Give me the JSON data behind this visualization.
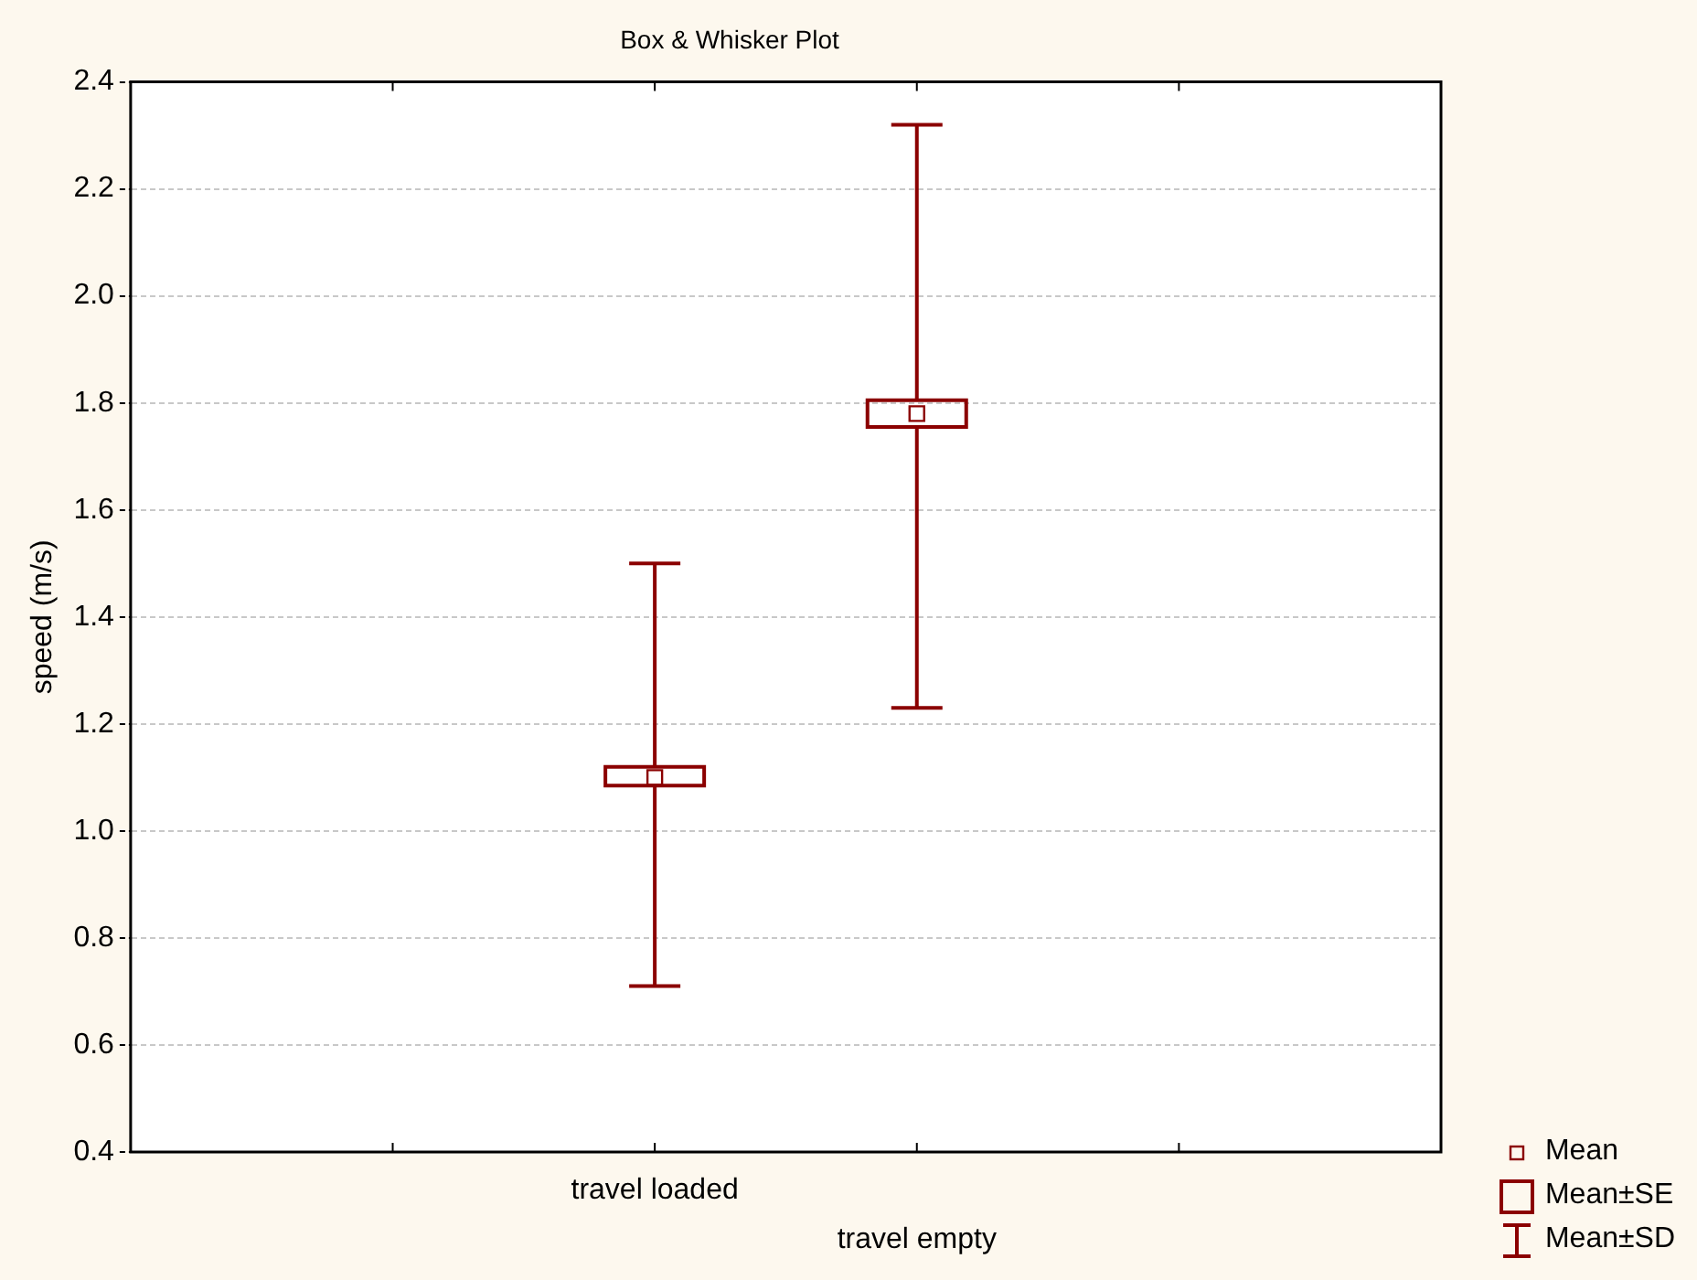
{
  "chart_data": {
    "type": "box",
    "title": "Box & Whisker Plot",
    "ylabel": "speed (m/s)",
    "categories": [
      "travel loaded",
      "travel empty"
    ],
    "color": "#8b0000",
    "boxes": [
      {
        "low": 0.71,
        "q1": 1.085,
        "median": 1.1,
        "q3": 1.12,
        "high": 1.5
      },
      {
        "low": 1.23,
        "q1": 1.755,
        "median": 1.78,
        "q3": 1.805,
        "high": 2.32
      }
    ],
    "ylim": [
      0.4,
      2.4
    ],
    "yticks": [
      {
        "value": 0.4,
        "label": "0.4"
      },
      {
        "value": 0.6,
        "label": "0.6"
      },
      {
        "value": 0.8,
        "label": "0.8"
      },
      {
        "value": 1.0,
        "label": "1.0"
      },
      {
        "value": 1.2,
        "label": "1.2"
      },
      {
        "value": 1.4,
        "label": "1.4"
      },
      {
        "value": 1.6,
        "label": "1.6"
      },
      {
        "value": 1.8,
        "label": "1.8"
      },
      {
        "value": 2.0,
        "label": "2.0"
      },
      {
        "value": 2.2,
        "label": "2.2"
      },
      {
        "value": 2.4,
        "label": "2.4"
      }
    ],
    "grid": "y",
    "annotations": [
      "Mean",
      "Mean±SE",
      "Mean±SD"
    ]
  }
}
